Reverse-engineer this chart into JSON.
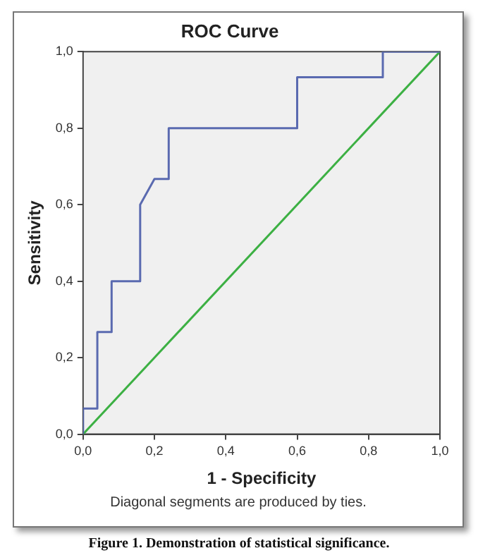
{
  "chart_data": {
    "type": "line",
    "title": "ROC Curve",
    "xlabel": "1 - Specificity",
    "ylabel": "Sensitivity",
    "series": [
      {
        "color": "#5a6ab0",
        "x": [
          0,
          0,
          0.04,
          0.04,
          0.08,
          0.08,
          0.16,
          0.16,
          0.2,
          0.24,
          0.24,
          0.6,
          0.6,
          0.84,
          0.84,
          1
        ],
        "values": [
          0,
          0.067,
          0.067,
          0.267,
          0.267,
          0.4,
          0.4,
          0.6,
          0.667,
          0.667,
          0.8,
          0.8,
          0.933,
          0.933,
          1,
          1
        ]
      },
      {
        "color": "#3cb043",
        "x": [
          0,
          1
        ],
        "values": [
          0,
          1
        ]
      }
    ],
    "xlim": [
      0,
      1
    ],
    "ylim": [
      0,
      1
    ],
    "xticks": [
      {
        "value": 0,
        "label": "0,0"
      },
      {
        "value": 0.2,
        "label": "0,2"
      },
      {
        "value": 0.4,
        "label": "0,4"
      },
      {
        "value": 0.6,
        "label": "0,6"
      },
      {
        "value": 0.8,
        "label": "0,8"
      },
      {
        "value": 1,
        "label": "1,0"
      }
    ],
    "yticks": [
      {
        "value": 0,
        "label": "0,0"
      },
      {
        "value": 0.2,
        "label": "0,2"
      },
      {
        "value": 0.4,
        "label": "0,4"
      },
      {
        "value": 0.6,
        "label": "0,6"
      },
      {
        "value": 0.8,
        "label": "0,8"
      },
      {
        "value": 1,
        "label": "1,0"
      }
    ],
    "grid": false,
    "legend": false,
    "marker": "none",
    "line_style": "solid",
    "annotations": [
      "Diagonal segments are produced by ties.",
      "Figure 1. Demonstration of statistical significance."
    ]
  }
}
